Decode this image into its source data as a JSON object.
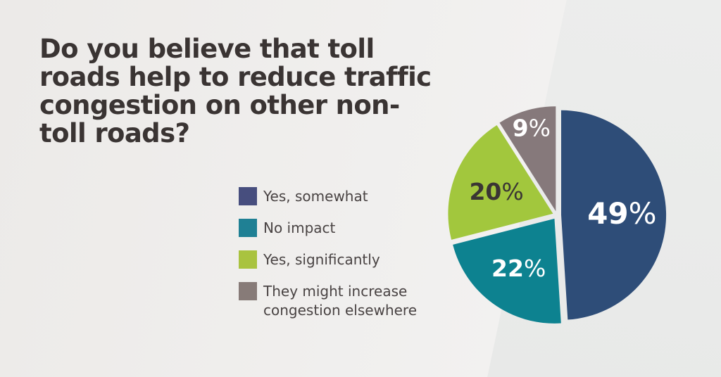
{
  "page": {
    "background_color": "#e9e9e9",
    "background_highlight_color": "#f2f1f0"
  },
  "title": {
    "text": "Do you believe that toll roads help to reduce traffic congestion on other non-toll roads?",
    "lines": [
      "Do you believe that toll",
      "roads help to reduce traffic",
      "congestion on other non-",
      "toll roads?"
    ],
    "color": "#3a3433"
  },
  "chart_data": {
    "type": "pie",
    "title": "Do you believe that toll roads help to reduce traffic congestion on other non-toll roads?",
    "categories": [
      "Yes, somewhat",
      "No impact",
      "Yes, significantly",
      "They might increase congestion elsewhere"
    ],
    "values": [
      49,
      22,
      20,
      9
    ],
    "unit": "%",
    "value_labels": [
      "49%",
      "22%",
      "20%",
      "9%"
    ],
    "slice_colors": [
      "#2e4d78",
      "#0d8290",
      "#a2c73d",
      "#86797b"
    ],
    "legend_swatch_colors": [
      "#474e7e",
      "#1f8094",
      "#a9c33f",
      "#877b78"
    ],
    "value_label_colors": [
      "#ffffff",
      "#ffffff",
      "#3a3534",
      "#ffffff"
    ],
    "start_angle_deg": 0,
    "direction": "clockwise",
    "legend_position": "left-of-chart",
    "legend_text_color": "#494343"
  }
}
